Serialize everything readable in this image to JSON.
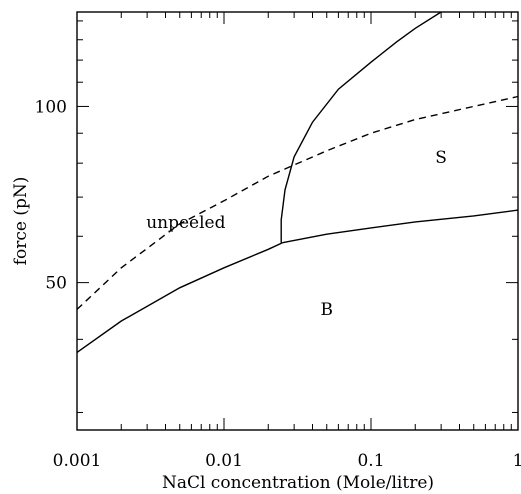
{
  "chart_data": {
    "type": "line",
    "title": "",
    "xlabel": "NaCl concentration  (Mole/litre)",
    "ylabel": "force  (pN)",
    "xscale": "log",
    "yscale": "log",
    "xlim": [
      0.001,
      1
    ],
    "ylim": [
      28,
      145
    ],
    "x_tick_labels": [
      "0.001",
      "0.01",
      "0.1",
      "1"
    ],
    "y_tick_labels": [
      "50",
      "100"
    ],
    "grid": false,
    "series": [
      {
        "style": "dashed",
        "x": [
          0.001,
          0.002,
          0.005,
          0.01,
          0.02,
          0.05,
          0.1,
          0.2,
          0.5,
          1
        ],
        "y": [
          45,
          53,
          63,
          69,
          76,
          84,
          90,
          95,
          100,
          104
        ]
      },
      {
        "style": "solid",
        "x": [
          0.001,
          0.002,
          0.005,
          0.01,
          0.02,
          0.025
        ],
        "y": [
          38,
          43,
          49,
          53,
          57,
          58.5
        ]
      },
      {
        "style": "solid",
        "x": [
          0.025,
          0.05,
          0.1,
          0.2,
          0.5,
          1
        ],
        "y": [
          58.5,
          60.5,
          62,
          63.5,
          65,
          66.5
        ]
      },
      {
        "style": "solid",
        "x": [
          0.0245,
          0.0245,
          0.026,
          0.03,
          0.04,
          0.06,
          0.1,
          0.15,
          0.2,
          0.3
        ],
        "y": [
          58.5,
          64,
          72,
          82,
          94,
          107,
          119,
          129,
          136,
          145
        ]
      }
    ],
    "annotations": [
      {
        "text": "unpeeled",
        "x": 0.0055,
        "y": 62
      },
      {
        "text": "S",
        "x": 0.3,
        "y": 80
      },
      {
        "text": "B",
        "x": 0.05,
        "y": 44
      }
    ]
  }
}
